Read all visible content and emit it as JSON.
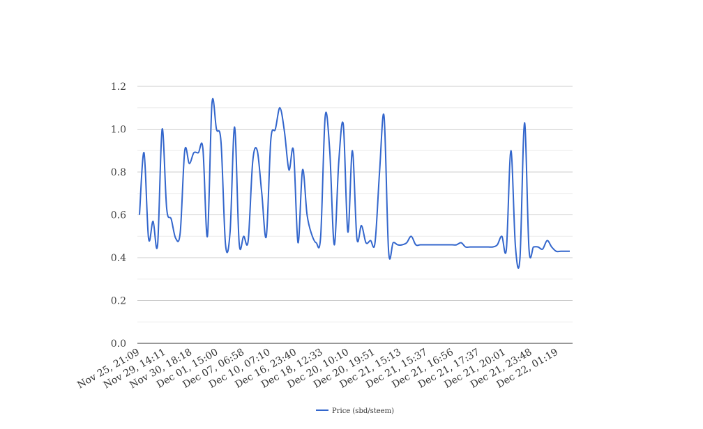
{
  "chart_data": {
    "type": "line",
    "ylim": [
      0,
      1.2
    ],
    "yticks": [
      "0.0",
      "0.2",
      "0.4",
      "0.6",
      "0.8",
      "1.0",
      "1.2"
    ],
    "grid": true,
    "legend_position": "bottom",
    "line_color": "#3366cc",
    "x_tick_labels": [
      "Nov 25, 21:09",
      "Nov 29, 14:11",
      "Nov 30, 18:18",
      "Dec 01, 15:00",
      "Dec 07, 06:58",
      "Dec 10, 07:10",
      "Dec 16, 23:40",
      "Dec 18, 12:33",
      "Dec 20, 10:10",
      "Dec 20, 19:51",
      "Dec 21, 15:13",
      "Dec 21, 15:37",
      "Dec 21, 16:56",
      "Dec 21, 17:37",
      "Dec 21, 20:01",
      "Dec 21, 23:48",
      "Dec 22, 01:19"
    ],
    "series": [
      {
        "name": "Price (sbd/steem)",
        "values": [
          0.6,
          0.89,
          0.49,
          0.57,
          0.46,
          1.0,
          0.63,
          0.58,
          0.49,
          0.52,
          0.9,
          0.84,
          0.89,
          0.89,
          0.91,
          0.5,
          1.12,
          1.0,
          0.94,
          0.46,
          0.52,
          1.01,
          0.47,
          0.5,
          0.48,
          0.85,
          0.9,
          0.7,
          0.5,
          0.95,
          1.0,
          1.1,
          0.99,
          0.81,
          0.9,
          0.47,
          0.81,
          0.6,
          0.51,
          0.47,
          0.5,
          1.06,
          0.9,
          0.46,
          0.85,
          1.02,
          0.52,
          0.9,
          0.49,
          0.55,
          0.47,
          0.48,
          0.47,
          0.8,
          1.06,
          0.43,
          0.47,
          0.46,
          0.46,
          0.47,
          0.5,
          0.46,
          0.46,
          0.46,
          0.46,
          0.46,
          0.46,
          0.46,
          0.46,
          0.46,
          0.46,
          0.47,
          0.45,
          0.45,
          0.45,
          0.45,
          0.45,
          0.45,
          0.45,
          0.46,
          0.5,
          0.44,
          0.9,
          0.45,
          0.4,
          1.03,
          0.44,
          0.45,
          0.45,
          0.44,
          0.48,
          0.45,
          0.43,
          0.43,
          0.43,
          0.43
        ]
      }
    ]
  }
}
